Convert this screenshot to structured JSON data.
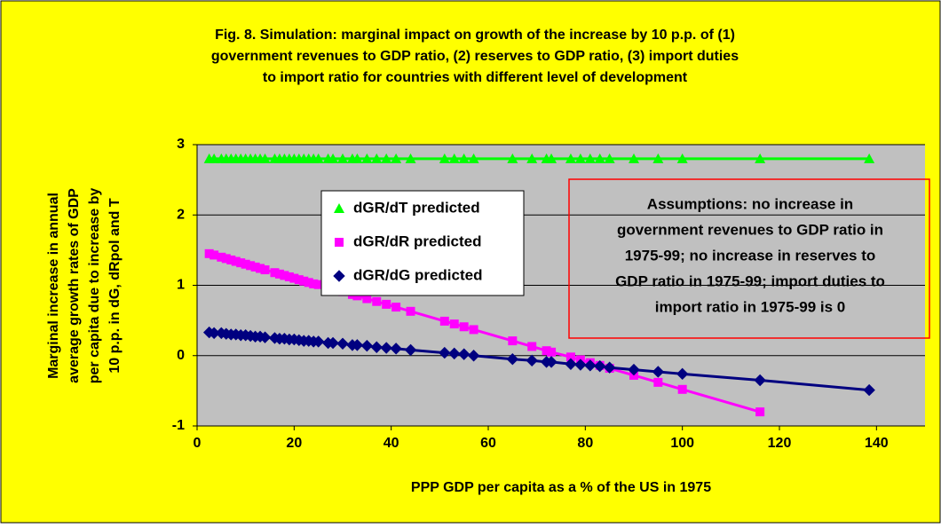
{
  "chart_data": {
    "type": "scatter-line",
    "title": [
      "Fig. 8. Simulation: marginal impact on growth of the increase by 10 p.p. of (1)",
      "government revenues to GDP ratio, (2) reserves to GDP ratio, (3) import duties",
      "to import ratio for countries with different level of development"
    ],
    "y_label": [
      "Marginal increase in annual",
      "average growth rates of GDP",
      "per capita due to increase by",
      "10 p.p. in dG, dRpol and T"
    ],
    "x_label": "PPP GDP per capita as a % of the US in 1975",
    "annotation": [
      "Assumptions: no increase in",
      "government revenues to GDP ratio in",
      "1975-99; no increase in reserves to",
      "GDP ratio in 1975-99; import duties to",
      "import ratio in 1975-99 is 0"
    ],
    "xlim": [
      0,
      150
    ],
    "xticks": [
      0,
      20,
      40,
      60,
      80,
      100,
      120,
      140
    ],
    "ylim": [
      -1,
      3
    ],
    "yticks": [
      -1,
      0,
      1,
      2,
      3
    ],
    "grid": true,
    "x": [
      2.5,
      3.5,
      5,
      6,
      7,
      8,
      9,
      10,
      11,
      12,
      13,
      14,
      16,
      17,
      18,
      19,
      20,
      21,
      22,
      23,
      24,
      25,
      27,
      28,
      30,
      32,
      33,
      35,
      37,
      39,
      41,
      44,
      51,
      53,
      55,
      57,
      65,
      69,
      72,
      73,
      77,
      79,
      81,
      83,
      85,
      90,
      95,
      100,
      116,
      138.5
    ],
    "series": [
      {
        "name": "dGR/dT predicted",
        "color": "#00ff00",
        "marker": "triangle",
        "values": [
          2.8,
          2.8,
          2.8,
          2.8,
          2.8,
          2.8,
          2.8,
          2.8,
          2.8,
          2.8,
          2.8,
          2.8,
          2.8,
          2.8,
          2.8,
          2.8,
          2.8,
          2.8,
          2.8,
          2.8,
          2.8,
          2.8,
          2.8,
          2.8,
          2.8,
          2.8,
          2.8,
          2.8,
          2.8,
          2.8,
          2.8,
          2.8,
          2.8,
          2.8,
          2.8,
          2.8,
          2.8,
          2.8,
          2.8,
          2.8,
          2.8,
          2.8,
          2.8,
          2.8,
          2.8,
          2.8,
          2.8,
          2.8,
          2.8,
          2.8
        ]
      },
      {
        "name": "dGR/dR predicted",
        "color": "#ff00ff",
        "marker": "square",
        "values": [
          1.45,
          1.43,
          1.4,
          1.38,
          1.36,
          1.34,
          1.32,
          1.3,
          1.28,
          1.26,
          1.24,
          1.22,
          1.18,
          1.16,
          1.14,
          1.12,
          1.1,
          1.08,
          1.06,
          1.04,
          1.02,
          1.01,
          0.97,
          0.95,
          0.91,
          0.87,
          0.85,
          0.81,
          0.77,
          0.73,
          0.69,
          0.63,
          0.49,
          0.45,
          0.41,
          0.37,
          0.21,
          0.13,
          0.07,
          0.05,
          -0.02,
          -0.06,
          -0.1,
          -0.14,
          -0.18,
          -0.28,
          -0.38,
          -0.48,
          -0.8,
          null
        ]
      },
      {
        "name": "dGR/dG predicted",
        "color": "#000080",
        "marker": "diamond",
        "values": [
          0.33,
          0.32,
          0.32,
          0.31,
          0.3,
          0.3,
          0.29,
          0.29,
          0.28,
          0.27,
          0.27,
          0.26,
          0.25,
          0.24,
          0.24,
          0.23,
          0.23,
          0.22,
          0.21,
          0.21,
          0.2,
          0.2,
          0.18,
          0.18,
          0.17,
          0.15,
          0.15,
          0.14,
          0.12,
          0.11,
          0.1,
          0.08,
          0.04,
          0.03,
          0.02,
          0.0,
          -0.05,
          -0.07,
          -0.09,
          -0.09,
          -0.12,
          -0.13,
          -0.14,
          -0.15,
          -0.17,
          -0.2,
          -0.23,
          -0.26,
          -0.35,
          -0.49
        ]
      }
    ]
  }
}
